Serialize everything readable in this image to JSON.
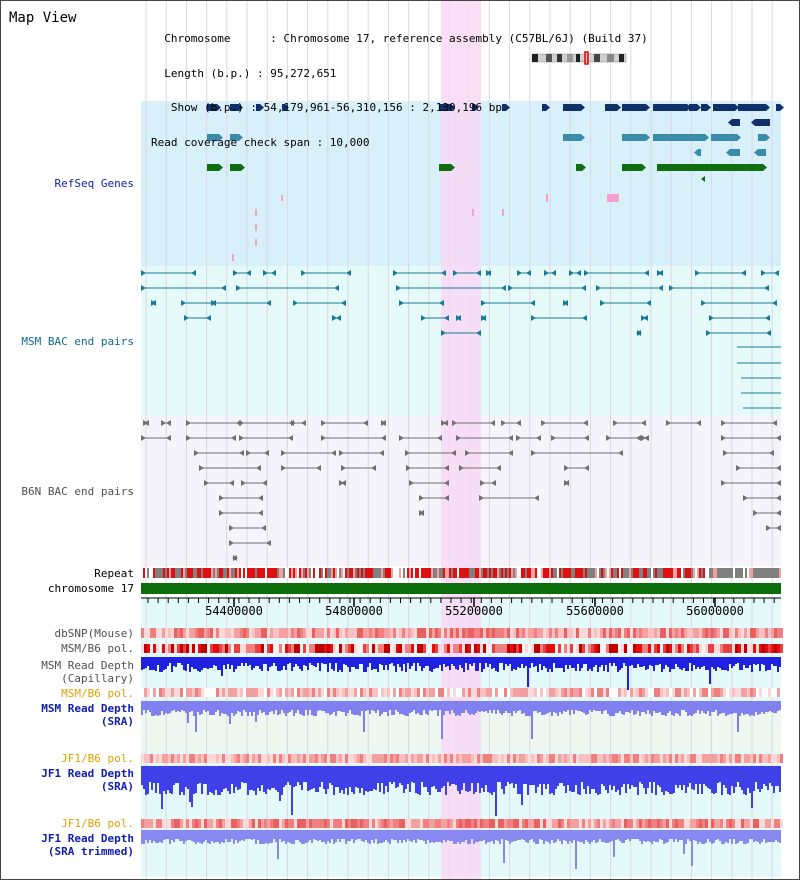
{
  "header": {
    "title": "Map View",
    "info_lines": [
      "  Chromosome      : Chromosome 17, reference assembly (C57BL/6J) (Build 37)",
      "  Length (b.p.) : 95,272,651",
      "   Show (b.p.) : 54,179,961-56,310,156 : 2,130,196 bp",
      "Read coverage check span : 10,000"
    ]
  },
  "tracks": {
    "refseq": "RefSeq Genes",
    "msm_bac": "MSM BAC end pairs",
    "b6n_bac": "B6N BAC end pairs",
    "repeat": "Repeat",
    "chromosome": "chromosome 17",
    "dbsnp": "dbSNP(Mouse)",
    "msm_b6_pol_1": "MSM/B6 pol.",
    "msm_depth_cap_1": "MSM Read Depth",
    "msm_depth_cap_2": "(Capillary)",
    "msm_b6_pol_2": "MSM/B6 pol.",
    "msm_depth_sra_1": "MSM Read Depth",
    "msm_depth_sra_2": "(SRA)",
    "jf1_b6_pol_1": "JF1/B6 pol.",
    "jf1_depth_sra_1": "JF1 Read Depth",
    "jf1_depth_sra_2": "(SRA)",
    "jf1_b6_pol_2": "JF1/B6 pol.",
    "jf1_depth_trim_1": "JF1 Read Depth",
    "jf1_depth_trim_2": "(SRA trimmed)"
  },
  "axis": {
    "ticks": [
      "54400000",
      "54800000",
      "55200000",
      "55600000",
      "56000000"
    ]
  },
  "colors": {
    "refseq_bg": "#d8f0fa",
    "msm_bac_bg": "#e6fafa",
    "b6n_bac_bg": "#f4f4fa",
    "lower_bg": "#e4fafa",
    "highlight": "#f8d8f4",
    "refseq_dark": "#10306a",
    "refseq_mid": "#3a8aaa",
    "refseq_green": "#0e6e10",
    "refseq_pink": "#f4a0d0",
    "msm_bac": "#187a9a",
    "b6n_bac": "#707070",
    "chromosome": "#0b6e0b",
    "label_blue": "#1020b0",
    "label_teal": "#106a8a",
    "label_gray": "#505050",
    "label_orange": "#e0a000"
  }
}
